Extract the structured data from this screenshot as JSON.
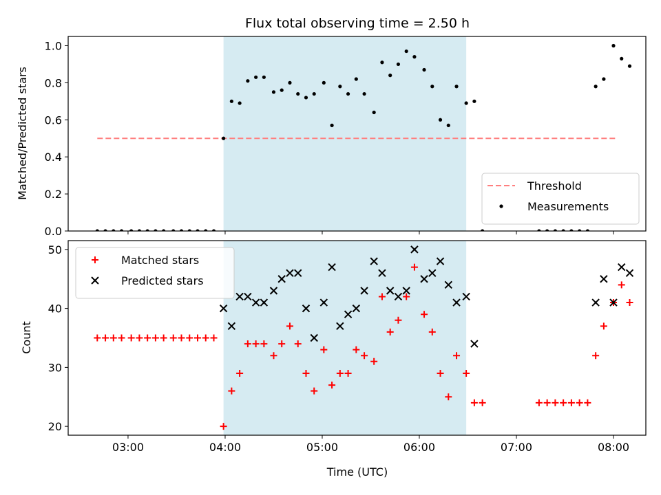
{
  "chart_data": [
    {
      "type": "scatter",
      "title": "Flux total observing time = 2.50 h",
      "xlabel": "",
      "ylabel": "Matched/Predicted stars",
      "xlim": [
        "02:23",
        "08:20"
      ],
      "ylim": [
        0.0,
        1.05
      ],
      "x_tick_labels": [
        "03:00",
        "04:00",
        "05:00",
        "06:00",
        "07:00",
        "08:00"
      ],
      "y_ticks": [
        0.0,
        0.2,
        0.4,
        0.6,
        0.8,
        1.0
      ],
      "y_tick_labels": [
        "0.0",
        "0.2",
        "0.4",
        "0.6",
        "0.8",
        "1.0"
      ],
      "shaded_interval": {
        "start": "03:59",
        "end": "06:29",
        "color": "#add8e6"
      },
      "legend_position": "lower-right",
      "series": [
        {
          "name": "Threshold",
          "kind": "dashed-line",
          "color": "#ff7f7f",
          "points": [
            [
              "02:41",
              0.5
            ],
            [
              "08:02",
              0.5
            ]
          ]
        },
        {
          "name": "Measurements",
          "kind": "dots",
          "color": "#000000",
          "points": [
            [
              "02:41",
              0.0
            ],
            [
              "02:46",
              0.0
            ],
            [
              "02:51",
              0.0
            ],
            [
              "02:56",
              0.0
            ],
            [
              "03:02",
              0.0
            ],
            [
              "03:07",
              0.0
            ],
            [
              "03:12",
              0.0
            ],
            [
              "03:17",
              0.0
            ],
            [
              "03:22",
              0.0
            ],
            [
              "03:28",
              0.0
            ],
            [
              "03:33",
              0.0
            ],
            [
              "03:38",
              0.0
            ],
            [
              "03:43",
              0.0
            ],
            [
              "03:48",
              0.0
            ],
            [
              "03:53",
              0.0
            ],
            [
              "03:59",
              0.5
            ],
            [
              "04:04",
              0.7
            ],
            [
              "04:09",
              0.69
            ],
            [
              "04:14",
              0.81
            ],
            [
              "04:19",
              0.83
            ],
            [
              "04:24",
              0.83
            ],
            [
              "04:30",
              0.75
            ],
            [
              "04:35",
              0.76
            ],
            [
              "04:40",
              0.8
            ],
            [
              "04:45",
              0.74
            ],
            [
              "04:50",
              0.72
            ],
            [
              "04:55",
              0.74
            ],
            [
              "05:01",
              0.8
            ],
            [
              "05:06",
              0.57
            ],
            [
              "05:11",
              0.78
            ],
            [
              "05:16",
              0.74
            ],
            [
              "05:21",
              0.82
            ],
            [
              "05:26",
              0.74
            ],
            [
              "05:32",
              0.64
            ],
            [
              "05:37",
              0.91
            ],
            [
              "05:42",
              0.84
            ],
            [
              "05:47",
              0.9
            ],
            [
              "05:52",
              0.97
            ],
            [
              "05:57",
              0.94
            ],
            [
              "06:03",
              0.87
            ],
            [
              "06:08",
              0.78
            ],
            [
              "06:13",
              0.6
            ],
            [
              "06:18",
              0.57
            ],
            [
              "06:23",
              0.78
            ],
            [
              "06:29",
              0.69
            ],
            [
              "06:34",
              0.7
            ],
            [
              "06:39",
              0.0
            ],
            [
              "07:14",
              0.0
            ],
            [
              "07:19",
              0.0
            ],
            [
              "07:24",
              0.0
            ],
            [
              "07:29",
              0.0
            ],
            [
              "07:34",
              0.0
            ],
            [
              "07:39",
              0.0
            ],
            [
              "07:44",
              0.0
            ],
            [
              "07:49",
              0.78
            ],
            [
              "07:54",
              0.82
            ],
            [
              "08:00",
              1.0
            ],
            [
              "08:05",
              0.93
            ],
            [
              "08:10",
              0.89
            ]
          ]
        }
      ]
    },
    {
      "type": "scatter",
      "title": "",
      "xlabel": "Time (UTC)",
      "ylabel": "Count",
      "xlim": [
        "02:23",
        "08:20"
      ],
      "ylim": [
        18.5,
        51.5
      ],
      "x_tick_labels": [
        "03:00",
        "04:00",
        "05:00",
        "06:00",
        "07:00",
        "08:00"
      ],
      "y_ticks": [
        20,
        30,
        40,
        50
      ],
      "y_tick_labels": [
        "20",
        "30",
        "40",
        "50"
      ],
      "shaded_interval": {
        "start": "03:59",
        "end": "06:29",
        "color": "#add8e6"
      },
      "legend_position": "upper-left",
      "series": [
        {
          "name": "Matched stars",
          "kind": "plus",
          "color": "#ff0000",
          "points": [
            [
              "02:41",
              35
            ],
            [
              "02:46",
              35
            ],
            [
              "02:51",
              35
            ],
            [
              "02:56",
              35
            ],
            [
              "03:02",
              35
            ],
            [
              "03:07",
              35
            ],
            [
              "03:12",
              35
            ],
            [
              "03:17",
              35
            ],
            [
              "03:22",
              35
            ],
            [
              "03:28",
              35
            ],
            [
              "03:33",
              35
            ],
            [
              "03:38",
              35
            ],
            [
              "03:43",
              35
            ],
            [
              "03:48",
              35
            ],
            [
              "03:53",
              35
            ],
            [
              "03:59",
              20
            ],
            [
              "04:04",
              26
            ],
            [
              "04:09",
              29
            ],
            [
              "04:14",
              34
            ],
            [
              "04:19",
              34
            ],
            [
              "04:24",
              34
            ],
            [
              "04:30",
              32
            ],
            [
              "04:35",
              34
            ],
            [
              "04:40",
              37
            ],
            [
              "04:45",
              34
            ],
            [
              "04:50",
              29
            ],
            [
              "04:55",
              26
            ],
            [
              "05:01",
              33
            ],
            [
              "05:06",
              27
            ],
            [
              "05:11",
              29
            ],
            [
              "05:16",
              29
            ],
            [
              "05:21",
              33
            ],
            [
              "05:26",
              32
            ],
            [
              "05:32",
              31
            ],
            [
              "05:37",
              42
            ],
            [
              "05:42",
              36
            ],
            [
              "05:47",
              38
            ],
            [
              "05:52",
              42
            ],
            [
              "05:57",
              47
            ],
            [
              "06:03",
              39
            ],
            [
              "06:08",
              36
            ],
            [
              "06:13",
              29
            ],
            [
              "06:18",
              25
            ],
            [
              "06:23",
              32
            ],
            [
              "06:29",
              29
            ],
            [
              "06:34",
              24
            ],
            [
              "06:39",
              24
            ],
            [
              "07:14",
              24
            ],
            [
              "07:19",
              24
            ],
            [
              "07:24",
              24
            ],
            [
              "07:29",
              24
            ],
            [
              "07:34",
              24
            ],
            [
              "07:39",
              24
            ],
            [
              "07:44",
              24
            ],
            [
              "07:49",
              32
            ],
            [
              "07:54",
              37
            ],
            [
              "08:00",
              41
            ],
            [
              "08:05",
              44
            ],
            [
              "08:10",
              41
            ]
          ]
        },
        {
          "name": "Predicted stars",
          "kind": "x",
          "color": "#000000",
          "points": [
            [
              "03:59",
              40
            ],
            [
              "04:04",
              37
            ],
            [
              "04:09",
              42
            ],
            [
              "04:14",
              42
            ],
            [
              "04:19",
              41
            ],
            [
              "04:24",
              41
            ],
            [
              "04:30",
              43
            ],
            [
              "04:35",
              45
            ],
            [
              "04:40",
              46
            ],
            [
              "04:45",
              46
            ],
            [
              "04:50",
              40
            ],
            [
              "04:55",
              35
            ],
            [
              "05:01",
              41
            ],
            [
              "05:06",
              47
            ],
            [
              "05:11",
              37
            ],
            [
              "05:16",
              39
            ],
            [
              "05:21",
              40
            ],
            [
              "05:26",
              43
            ],
            [
              "05:32",
              48
            ],
            [
              "05:37",
              46
            ],
            [
              "05:42",
              43
            ],
            [
              "05:47",
              42
            ],
            [
              "05:52",
              43
            ],
            [
              "05:57",
              50
            ],
            [
              "06:03",
              45
            ],
            [
              "06:08",
              46
            ],
            [
              "06:13",
              48
            ],
            [
              "06:18",
              44
            ],
            [
              "06:23",
              41
            ],
            [
              "06:29",
              42
            ],
            [
              "06:34",
              34
            ],
            [
              "07:49",
              41
            ],
            [
              "07:54",
              45
            ],
            [
              "08:00",
              41
            ],
            [
              "08:05",
              47
            ],
            [
              "08:10",
              46
            ]
          ]
        }
      ]
    }
  ]
}
